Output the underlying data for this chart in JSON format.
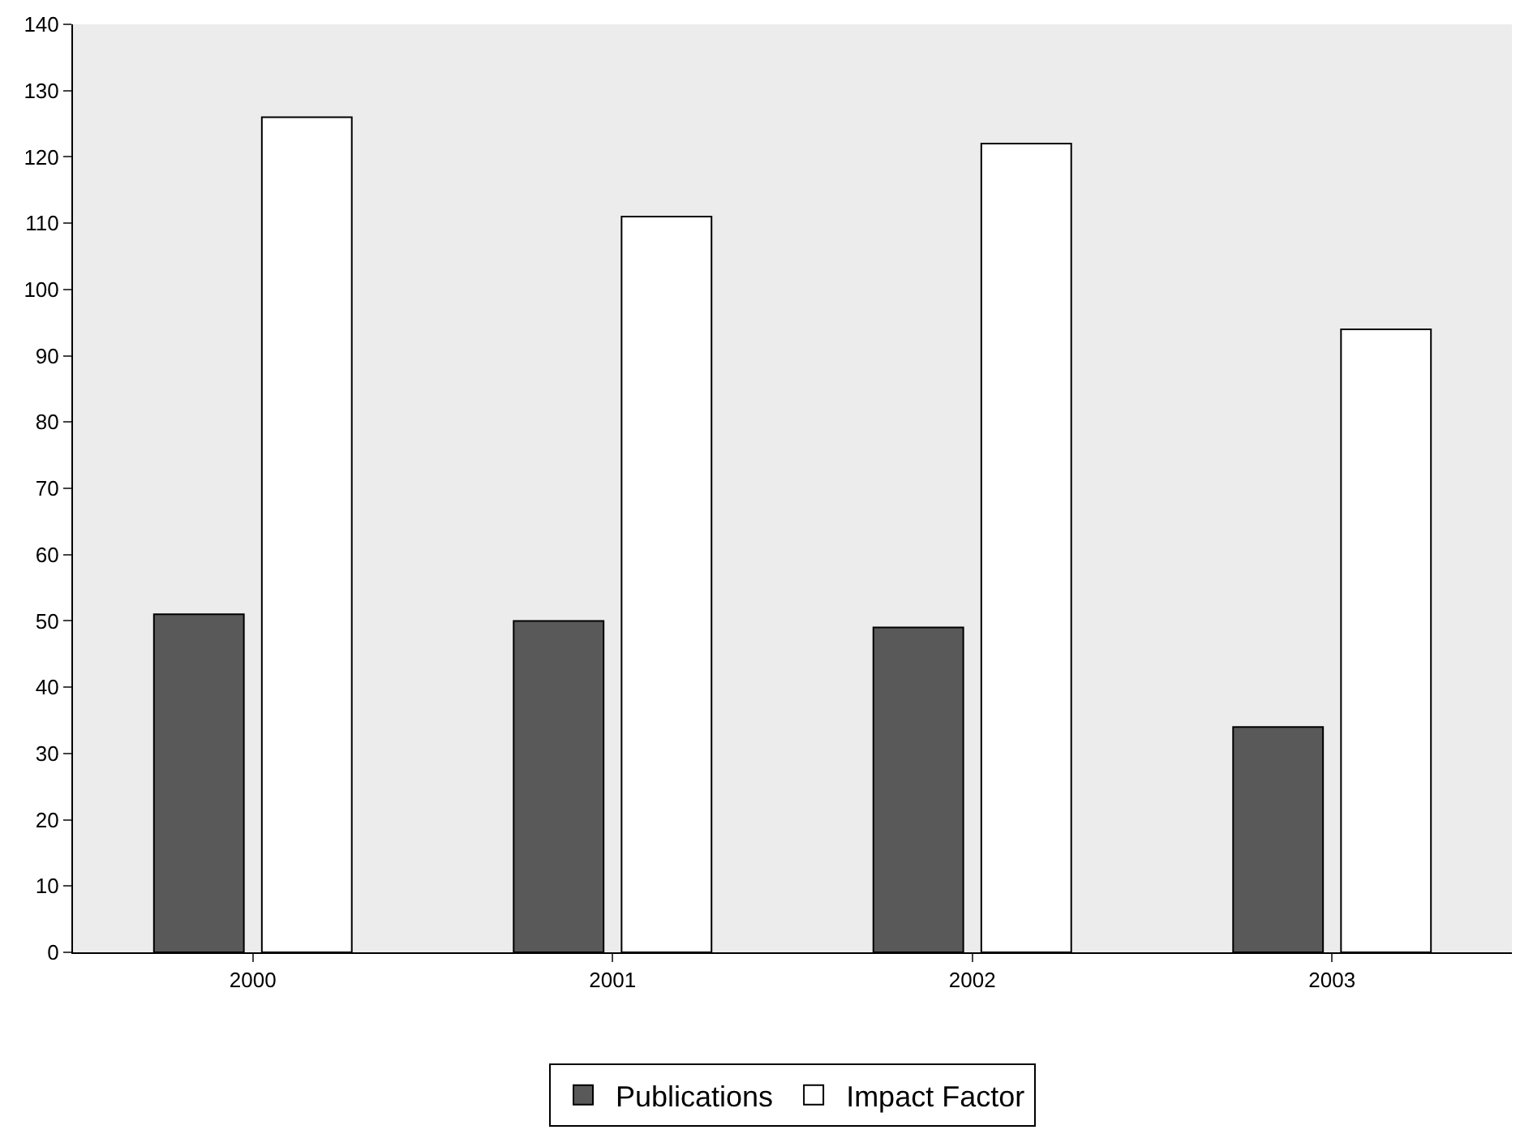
{
  "chart_data": {
    "type": "bar",
    "categories": [
      "2000",
      "2001",
      "2002",
      "2003"
    ],
    "series": [
      {
        "name": "Publications",
        "color": "#595959",
        "values": [
          51,
          50,
          49,
          34
        ]
      },
      {
        "name": "Impact Factor",
        "color": "#ffffff",
        "values": [
          126,
          111,
          122,
          94
        ]
      }
    ],
    "ylim": [
      0,
      140
    ],
    "yticks": [
      0,
      10,
      20,
      30,
      40,
      50,
      60,
      70,
      80,
      90,
      100,
      110,
      120,
      130,
      140
    ],
    "grid": false,
    "legend": "bottom"
  }
}
